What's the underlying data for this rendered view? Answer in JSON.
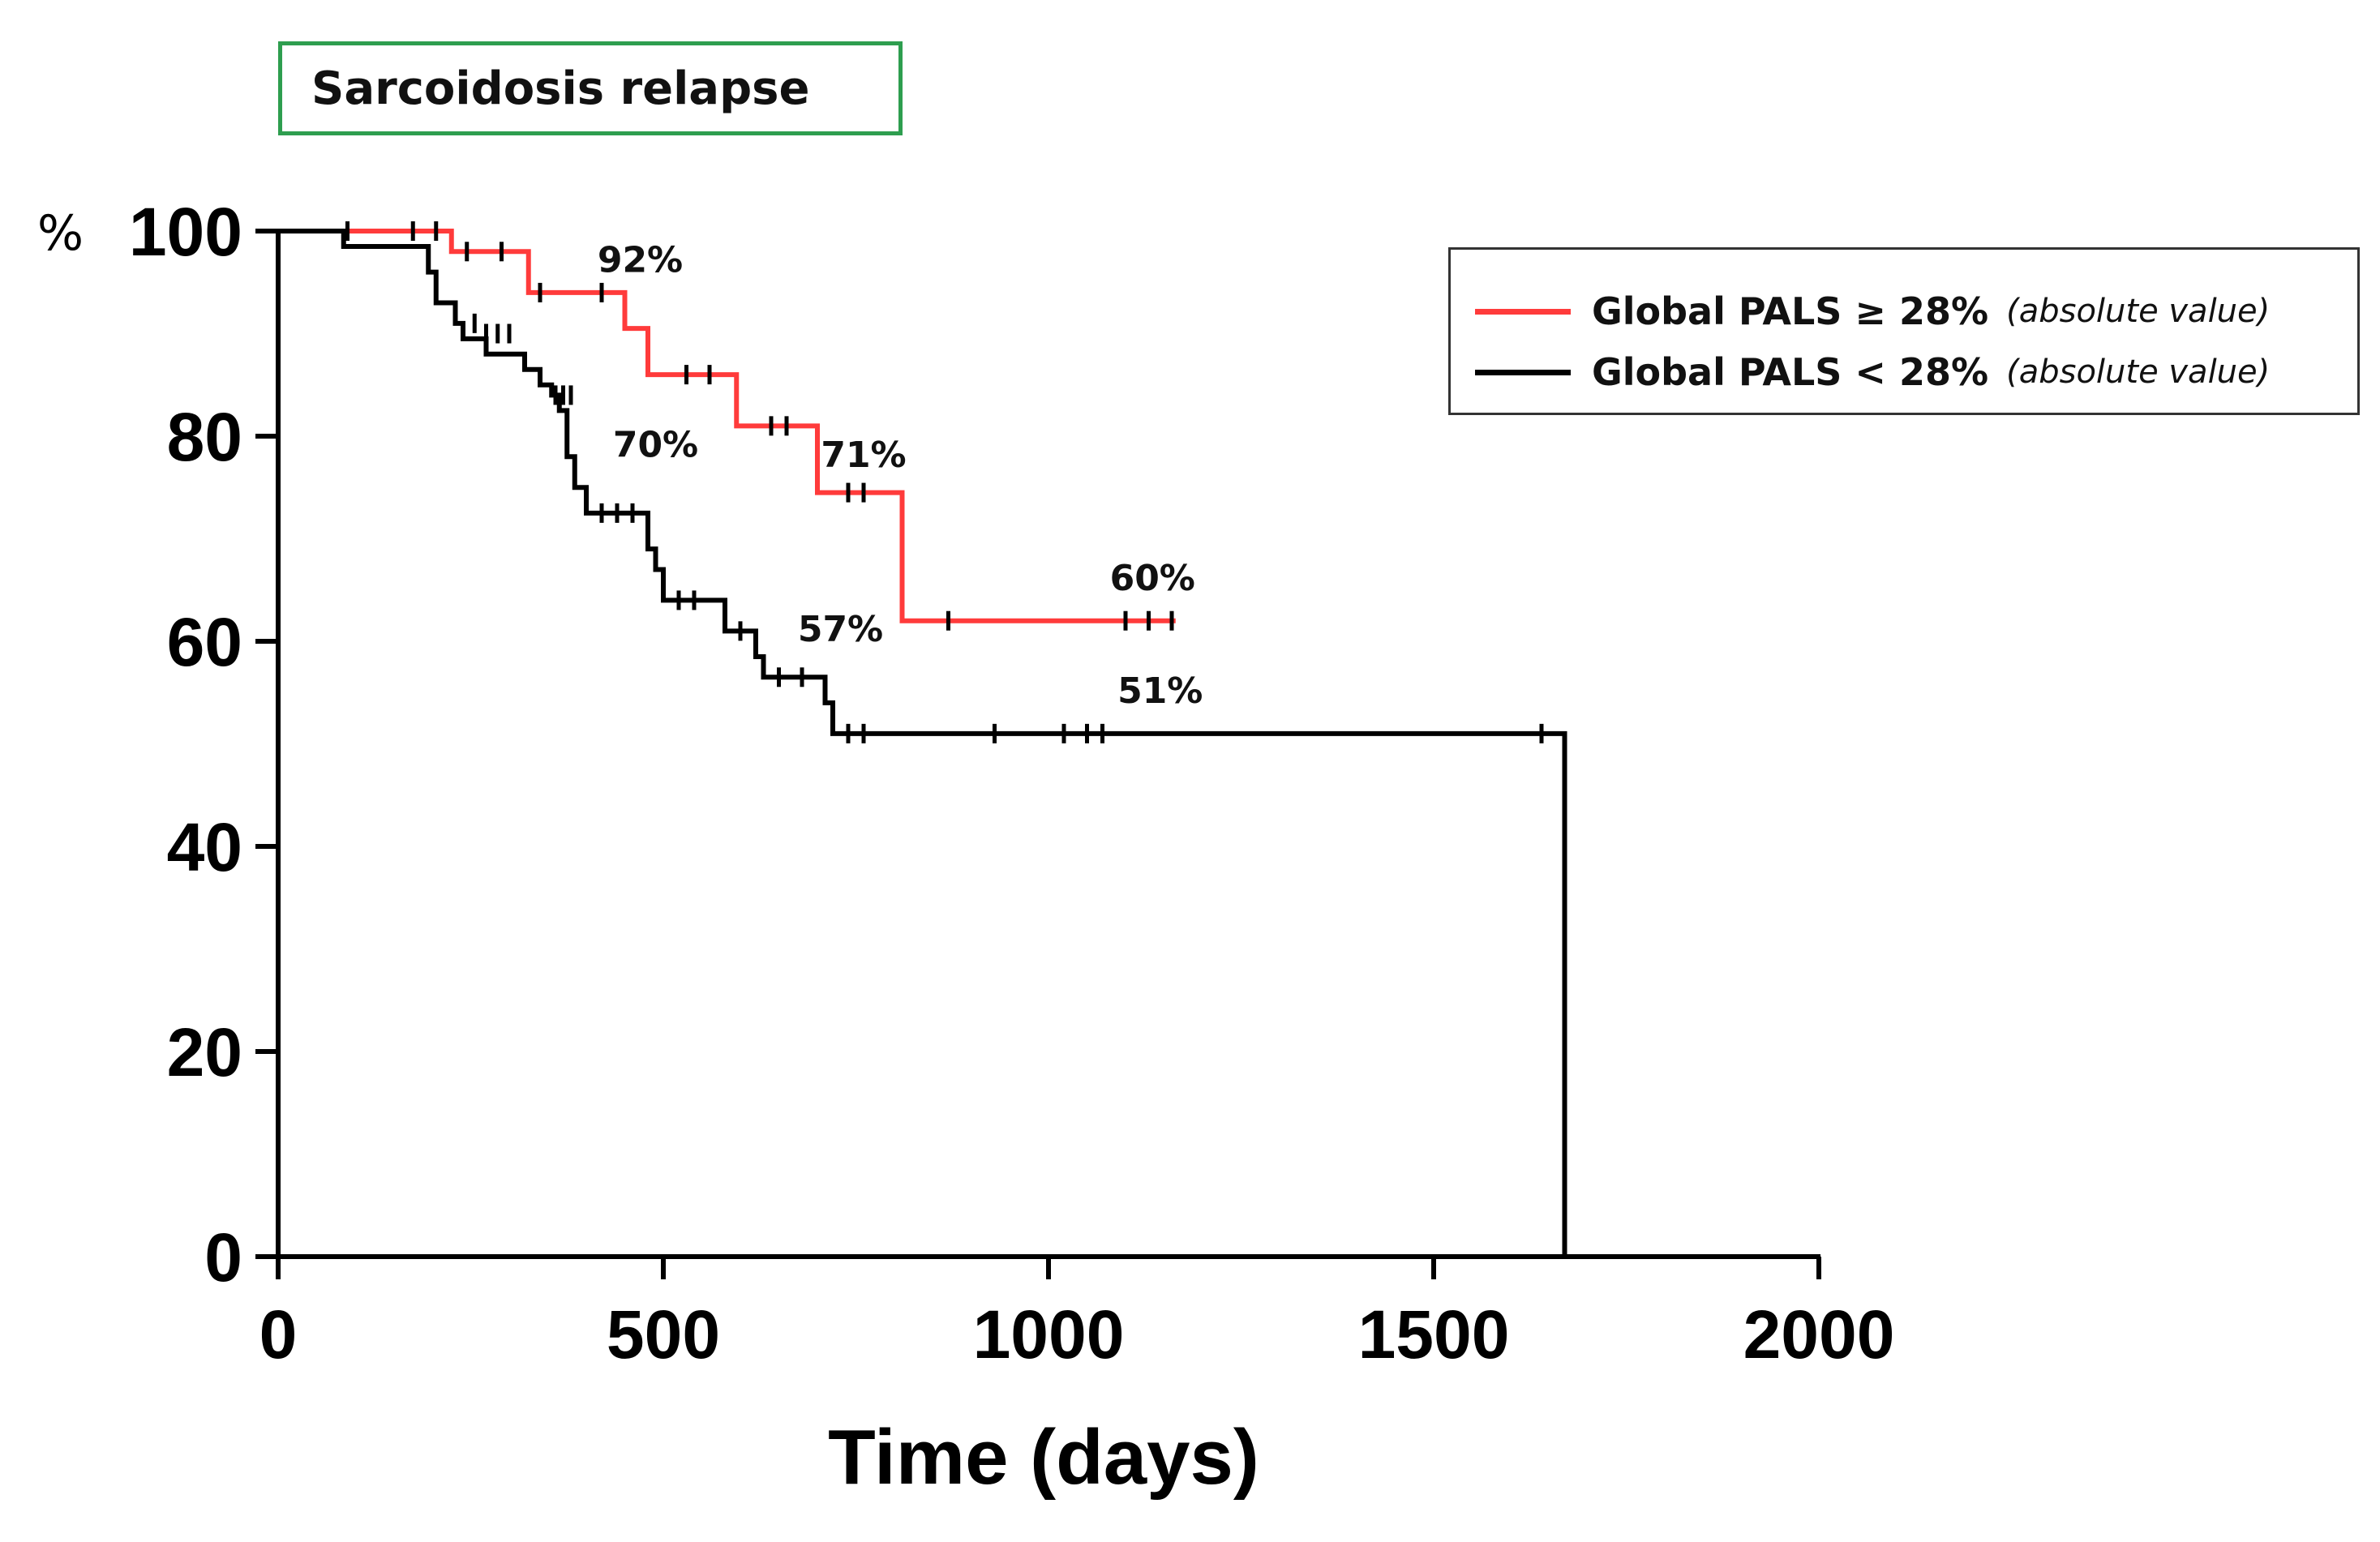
{
  "chart_data": {
    "type": "line",
    "subtype": "kaplan-meier",
    "title": "Sarcoidosis relapse",
    "xlabel": "Time (days)",
    "ylabel": "%",
    "xlim": [
      0,
      2000
    ],
    "ylim": [
      0,
      100
    ],
    "x_ticks": [
      0,
      500,
      1000,
      1500,
      2000
    ],
    "y_ticks": [
      0,
      20,
      40,
      60,
      80,
      100
    ],
    "x_tick_labels": [
      "0",
      "500",
      "1000",
      "1500",
      "2000"
    ],
    "y_tick_labels": [
      "0",
      "20",
      "40",
      "60",
      "80",
      "100"
    ],
    "series": [
      {
        "name": "Global PALS ≥ 28%",
        "note": "(absolute value)",
        "color": "#ff3b3b",
        "steps": [
          [
            0,
            100
          ],
          [
            225,
            98
          ],
          [
            325,
            94
          ],
          [
            450,
            90.5
          ],
          [
            480,
            86
          ],
          [
            595,
            81
          ],
          [
            700,
            74.5
          ],
          [
            810,
            62
          ],
          [
            1165,
            62
          ]
        ],
        "censors": [
          [
            90,
            100
          ],
          [
            175,
            100
          ],
          [
            205,
            100
          ],
          [
            245,
            98
          ],
          [
            290,
            98
          ],
          [
            340,
            94
          ],
          [
            420,
            94
          ],
          [
            530,
            86
          ],
          [
            560,
            86
          ],
          [
            640,
            81
          ],
          [
            660,
            81
          ],
          [
            740,
            74.5
          ],
          [
            760,
            74.5
          ],
          [
            870,
            62
          ],
          [
            1100,
            62
          ],
          [
            1130,
            62
          ],
          [
            1160,
            62
          ]
        ]
      },
      {
        "name": "Global PALS < 28%",
        "note": "(absolute value)",
        "color": "#000000",
        "steps": [
          [
            0,
            100
          ],
          [
            85,
            98.5
          ],
          [
            195,
            96
          ],
          [
            205,
            93
          ],
          [
            230,
            91
          ],
          [
            240,
            89.5
          ],
          [
            270,
            88
          ],
          [
            320,
            86.5
          ],
          [
            340,
            85
          ],
          [
            355,
            84
          ],
          [
            365,
            82.5
          ],
          [
            375,
            78
          ],
          [
            385,
            75
          ],
          [
            400,
            72.5
          ],
          [
            480,
            69
          ],
          [
            490,
            67
          ],
          [
            500,
            64
          ],
          [
            580,
            61
          ],
          [
            620,
            58.5
          ],
          [
            630,
            56.5
          ],
          [
            710,
            54
          ],
          [
            720,
            51
          ],
          [
            1670,
            51
          ],
          [
            1670,
            0
          ]
        ],
        "censors": [
          [
            255,
            91
          ],
          [
            270,
            90
          ],
          [
            285,
            90
          ],
          [
            300,
            90
          ],
          [
            360,
            84
          ],
          [
            370,
            84
          ],
          [
            380,
            84
          ],
          [
            420,
            72.5
          ],
          [
            440,
            72.5
          ],
          [
            460,
            72.5
          ],
          [
            520,
            64
          ],
          [
            540,
            64
          ],
          [
            600,
            61
          ],
          [
            650,
            56.5
          ],
          [
            680,
            56.5
          ],
          [
            740,
            51
          ],
          [
            760,
            51
          ],
          [
            930,
            51
          ],
          [
            1020,
            51
          ],
          [
            1050,
            51
          ],
          [
            1070,
            51
          ],
          [
            1640,
            51
          ]
        ]
      }
    ],
    "annotations": [
      {
        "text": "92%",
        "x": 470,
        "y": 96
      },
      {
        "text": "70%",
        "x": 490,
        "y": 78
      },
      {
        "text": "71%",
        "x": 760,
        "y": 77
      },
      {
        "text": "57%",
        "x": 730,
        "y": 60
      },
      {
        "text": "60%",
        "x": 1135,
        "y": 65
      },
      {
        "text": "51%",
        "x": 1145,
        "y": 54
      }
    ]
  }
}
